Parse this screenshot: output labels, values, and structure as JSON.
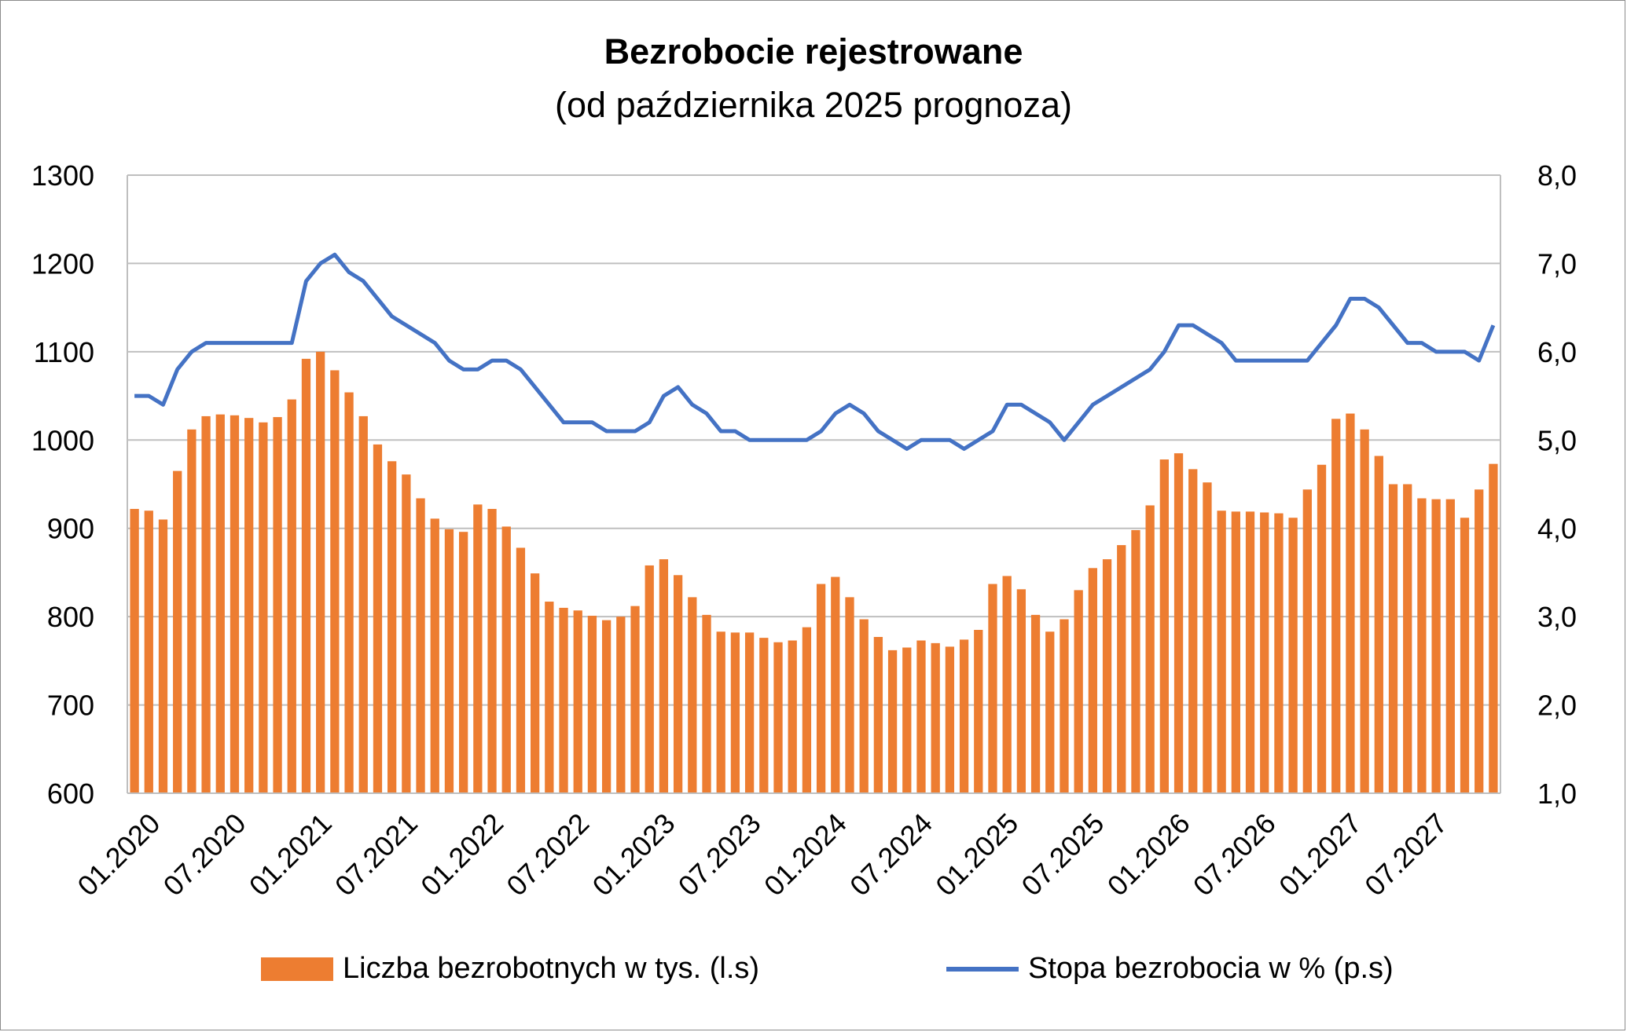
{
  "chart_data": {
    "type": "bar+line",
    "title": "Bezrobocie rejestrowane",
    "subtitle": "(od października 2025 prognoza)",
    "x_tick_labels": [
      "01.2020",
      "07.2020",
      "01.2021",
      "07.2021",
      "01.2022",
      "07.2022",
      "01.2023",
      "07.2023",
      "01.2024",
      "07.2024",
      "01.2025",
      "07.2025",
      "01.2026",
      "07.2026",
      "01.2027",
      "07.2027"
    ],
    "y_left": {
      "min": 600,
      "max": 1300,
      "step": 100,
      "tick_labels": [
        "600",
        "700",
        "800",
        "900",
        "1000",
        "1100",
        "1200",
        "1300"
      ]
    },
    "y_right": {
      "min": 1.0,
      "max": 8.0,
      "step": 1.0,
      "tick_labels": [
        "1,0",
        "2,0",
        "3,0",
        "4,0",
        "5,0",
        "6,0",
        "7,0",
        "8,0"
      ]
    },
    "grid": "horizontal",
    "legend_position": "bottom",
    "series": [
      {
        "name": "Liczba bezrobotnych w tys. (l.s)",
        "type": "bar",
        "axis": "left",
        "color": "#ED7D31",
        "values": [
          922,
          920,
          910,
          965,
          1012,
          1027,
          1029,
          1028,
          1025,
          1020,
          1026,
          1046,
          1092,
          1100,
          1079,
          1054,
          1027,
          995,
          976,
          961,
          934,
          911,
          899,
          896,
          927,
          922,
          902,
          878,
          849,
          817,
          810,
          807,
          801,
          796,
          800,
          812,
          858,
          865,
          847,
          822,
          802,
          783,
          782,
          782,
          776,
          771,
          773,
          788,
          837,
          845,
          822,
          797,
          777,
          762,
          765,
          773,
          770,
          766,
          774,
          785,
          837,
          846,
          831,
          802,
          783,
          797,
          830,
          855,
          865,
          881,
          898,
          926,
          978,
          985,
          967,
          952,
          920,
          919,
          919,
          918,
          917,
          912,
          944,
          972,
          1024,
          1030,
          1012,
          982,
          950,
          950,
          934,
          933,
          933,
          912,
          944,
          973
        ]
      },
      {
        "name": "Stopa bezrobocia w % (p.s)",
        "type": "line",
        "axis": "right",
        "color": "#4472C4",
        "values": [
          5.5,
          5.5,
          5.4,
          5.8,
          6.0,
          6.1,
          6.1,
          6.1,
          6.1,
          6.1,
          6.1,
          6.1,
          6.8,
          7.0,
          7.1,
          6.9,
          6.8,
          6.6,
          6.4,
          6.3,
          6.2,
          6.1,
          5.9,
          5.8,
          5.8,
          5.9,
          5.9,
          5.8,
          5.6,
          5.4,
          5.2,
          5.2,
          5.2,
          5.1,
          5.1,
          5.1,
          5.2,
          5.5,
          5.6,
          5.4,
          5.3,
          5.1,
          5.1,
          5.0,
          5.0,
          5.0,
          5.0,
          5.0,
          5.1,
          5.3,
          5.4,
          5.3,
          5.1,
          5.0,
          4.9,
          5.0,
          5.0,
          5.0,
          4.9,
          5.0,
          5.1,
          5.4,
          5.4,
          5.3,
          5.2,
          5.0,
          5.2,
          5.4,
          5.5,
          5.6,
          5.7,
          5.8,
          6.0,
          6.3,
          6.3,
          6.2,
          6.1,
          5.9,
          5.9,
          5.9,
          5.9,
          5.9,
          5.9,
          6.1,
          6.3,
          6.6,
          6.6,
          6.5,
          6.3,
          6.1,
          6.1,
          6.0,
          6.0,
          6.0,
          5.9,
          6.3
        ]
      }
    ]
  }
}
